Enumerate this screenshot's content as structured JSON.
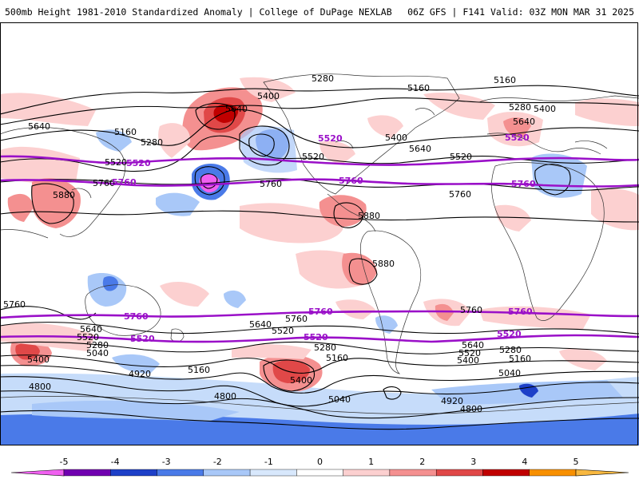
{
  "header": {
    "title_left": "500mb Height 1981-2010 Standardized Anomaly | College of DuPage NEXLAB",
    "title_right": "06Z GFS | F141 Valid: 03Z MON MAR 31 2025"
  },
  "map": {
    "contour_labels": {
      "black": [
        "5280",
        "5160",
        "5160",
        "5400",
        "5640",
        "5640",
        "5160",
        "5280",
        "5520",
        "5400",
        "5640",
        "5520",
        "5280",
        "5400",
        "5640",
        "5520",
        "5760",
        "5880",
        "5760",
        "5880",
        "5880",
        "5760",
        "5760",
        "5640",
        "5520",
        "5280",
        "5040",
        "5640",
        "5520",
        "5760",
        "5280",
        "5160",
        "5400",
        "4920",
        "5160",
        "4800",
        "5040",
        "4920",
        "4800",
        "5640",
        "5520",
        "5400",
        "5280",
        "5160",
        "5040",
        "5400",
        "5760",
        "4800"
      ],
      "purple": [
        "5520",
        "5520",
        "5760",
        "5760",
        "5520",
        "5760",
        "5760",
        "5760",
        "5760",
        "5520",
        "5520",
        "5520",
        "5760",
        "5520"
      ]
    },
    "colors": {
      "ocean": "#ffffff",
      "contour": "#000000",
      "highlight_contour": "#9a10c8",
      "coastline": "#333333"
    }
  },
  "colorbar": {
    "ticks": [
      "-5",
      "-4",
      "-3",
      "-2",
      "-1",
      "0",
      "1",
      "2",
      "3",
      "4",
      "5"
    ],
    "colors": [
      "#f060f0",
      "#7000b0",
      "#1e40c8",
      "#4a7ae8",
      "#a9c8f8",
      "#d8e8fc",
      "#ffffff",
      "#fcd0d0",
      "#f49090",
      "#e04848",
      "#c00000",
      "#f89000",
      "#f8b840"
    ]
  }
}
